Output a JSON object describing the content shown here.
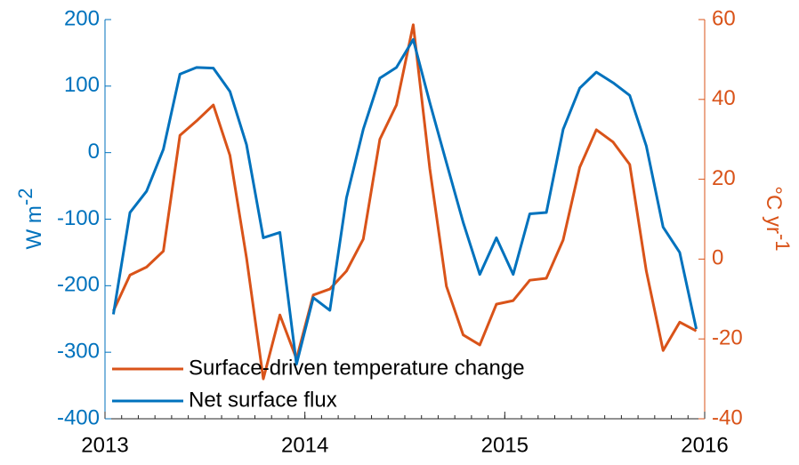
{
  "chart_data": {
    "type": "line",
    "x": [
      2013.042,
      2013.125,
      2013.208,
      2013.292,
      2013.375,
      2013.458,
      2013.542,
      2013.625,
      2013.708,
      2013.792,
      2013.875,
      2013.958,
      2014.042,
      2014.125,
      2014.208,
      2014.292,
      2014.375,
      2014.458,
      2014.542,
      2014.625,
      2014.708,
      2014.792,
      2014.875,
      2014.958,
      2015.042,
      2015.125,
      2015.208,
      2015.292,
      2015.375,
      2015.458,
      2015.542,
      2015.625,
      2015.708,
      2015.792,
      2015.875,
      2015.958
    ],
    "series": [
      {
        "name": "Surface-driven temperature change",
        "color": "#d95319",
        "axis": "y2",
        "values": [
          -13,
          -4,
          -2,
          2,
          31,
          34.6,
          38.6,
          26,
          0.3,
          -30,
          -14,
          -25,
          -9,
          -7.5,
          -3,
          5,
          30,
          38.6,
          58.7,
          22.6,
          -6.8,
          -19,
          -21.5,
          -11.3,
          -10.4,
          -5.3,
          -4.8,
          4.8,
          23,
          32.4,
          29.3,
          23.7,
          -3,
          -22.9,
          -15.8,
          -18
        ]
      },
      {
        "name": "Net surface flux",
        "color": "#0072bd",
        "values": [
          -243,
          -90,
          -58,
          5,
          118,
          128,
          127,
          92,
          12,
          -128,
          -120,
          -318,
          -218,
          -237,
          -68,
          35,
          112,
          128,
          170,
          75,
          -15,
          -105,
          -183,
          -128,
          -183,
          -92,
          -90,
          35,
          97,
          121,
          105,
          86,
          10,
          -112,
          -150,
          -265
        ]
      }
    ],
    "xlim": [
      2013,
      2016
    ],
    "xticks": [
      2013,
      2014,
      2015,
      2016
    ],
    "ylim": [
      -400,
      200
    ],
    "yticks": [
      -400,
      -300,
      -200,
      -100,
      0,
      100,
      200
    ],
    "y2lim": [
      -40,
      60
    ],
    "y2ticks": [
      -40,
      -20,
      0,
      20,
      40,
      60
    ],
    "ylabel": {
      "text": "W m",
      "sup": "-2"
    },
    "y2label": {
      "text": "°C yr",
      "sup": "-1"
    },
    "ycolor": "#0072bd",
    "y2color": "#d95319",
    "legend": "lower-left"
  }
}
